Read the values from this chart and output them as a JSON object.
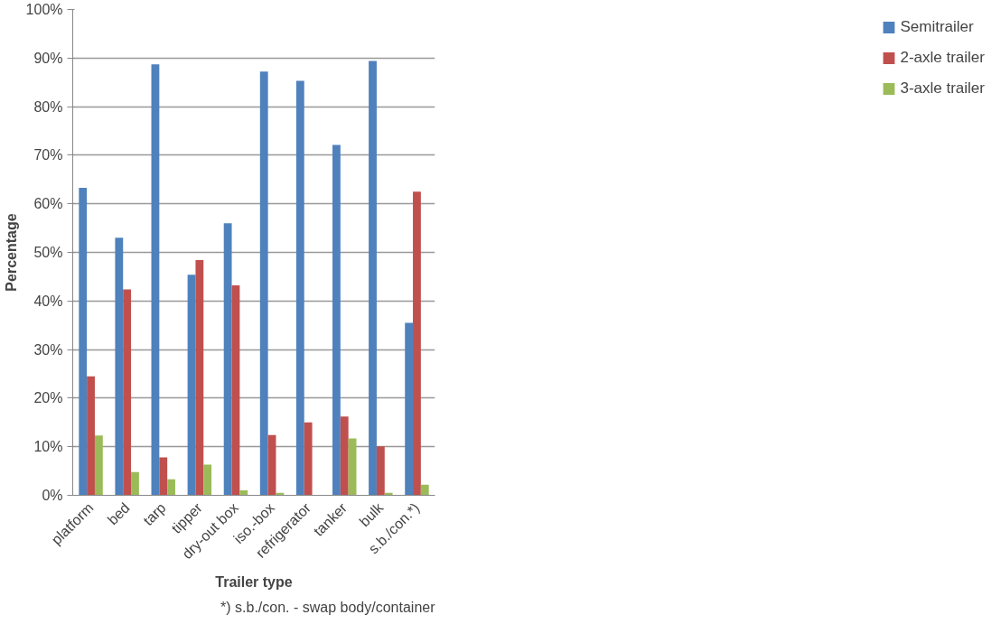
{
  "chart_data": {
    "type": "bar",
    "xlabel": "Trailer type",
    "ylabel": "Percentage",
    "categories": [
      "platform",
      "bed",
      "tarp",
      "tipper",
      "dry-out box",
      "iso.-box",
      "refrigerator",
      "tanker",
      "bulk",
      "s.b./con.*)"
    ],
    "series": [
      {
        "name": "Semitrailer",
        "color": "#4f81bd",
        "values": [
          63.3,
          53.0,
          88.7,
          45.4,
          56.0,
          87.2,
          85.3,
          72.1,
          89.4,
          35.5
        ]
      },
      {
        "name": "2-axle trailer",
        "color": "#c0504d",
        "values": [
          24.5,
          42.4,
          7.8,
          48.4,
          43.2,
          12.4,
          15.0,
          16.2,
          10.1,
          62.5
        ]
      },
      {
        "name": "3-axle trailer",
        "color": "#9bbb59",
        "values": [
          12.3,
          4.8,
          3.3,
          6.3,
          1.0,
          0.5,
          0.0,
          11.7,
          0.5,
          2.2
        ]
      }
    ],
    "ylim": [
      0,
      100
    ],
    "yticks": [
      {
        "value": 0,
        "label": "0%"
      },
      {
        "value": 10,
        "label": "10%"
      },
      {
        "value": 20,
        "label": "20%"
      },
      {
        "value": 30,
        "label": "30%"
      },
      {
        "value": 40,
        "label": "40%"
      },
      {
        "value": 50,
        "label": "50%"
      },
      {
        "value": 60,
        "label": "60%"
      },
      {
        "value": 70,
        "label": "70%"
      },
      {
        "value": 80,
        "label": "80%"
      },
      {
        "value": 90,
        "label": "90%"
      },
      {
        "value": 100,
        "label": "100%"
      }
    ],
    "grid": "y",
    "legend": "right",
    "annotations": [
      "*) s.b./con. - swap body/container"
    ]
  }
}
